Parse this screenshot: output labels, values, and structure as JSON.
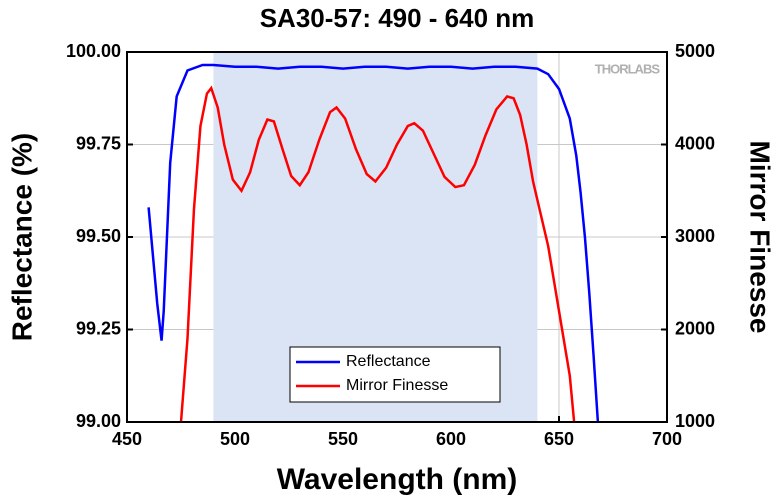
{
  "chart_data": {
    "type": "line",
    "title": "SA30-57: 490 - 640 nm",
    "xlabel": "Wavelength (nm)",
    "ylabel": "Reflectance (%)",
    "y2label": "Mirror Finesse",
    "watermark": "THORLABS",
    "xlim": [
      450,
      700
    ],
    "xticks": [
      450,
      500,
      550,
      600,
      650,
      700
    ],
    "ylim": [
      99,
      100
    ],
    "yticks": [
      {
        "value": 99,
        "label": "99.00"
      },
      {
        "value": 99.25,
        "label": "99.25"
      },
      {
        "value": 99.5,
        "label": "99.50"
      },
      {
        "value": 99.75,
        "label": "99.75"
      },
      {
        "value": 100,
        "label": "100.00"
      }
    ],
    "y2lim": [
      1000,
      5000
    ],
    "y2ticks": [
      1000,
      2000,
      3000,
      4000,
      5000
    ],
    "grid": true,
    "shaded_range": [
      490,
      640
    ],
    "shade_color": "#dbe4f5",
    "legend": "bottom",
    "series": [
      {
        "name": "Reflectance",
        "color": "#0000ff",
        "x": [
          460,
          462,
          464,
          466,
          467,
          470,
          473,
          478,
          485,
          490,
          500,
          510,
          520,
          530,
          540,
          550,
          560,
          570,
          580,
          590,
          600,
          610,
          620,
          630,
          640,
          645,
          650,
          655,
          658,
          660,
          662,
          664,
          666,
          668
        ],
        "values": [
          99.58,
          99.45,
          99.32,
          99.22,
          99.3,
          99.7,
          99.88,
          99.95,
          99.965,
          99.965,
          99.96,
          99.96,
          99.955,
          99.96,
          99.96,
          99.955,
          99.96,
          99.96,
          99.955,
          99.96,
          99.96,
          99.955,
          99.96,
          99.96,
          99.955,
          99.94,
          99.9,
          99.82,
          99.72,
          99.62,
          99.5,
          99.35,
          99.18,
          99.0
        ]
      },
      {
        "name": "Mirror Finesse",
        "color": "#ff0000",
        "axis": "y2",
        "x": [
          475,
          478,
          481,
          484,
          487,
          489,
          492,
          495,
          499,
          503,
          507,
          511,
          515,
          518,
          522,
          526,
          530,
          534,
          539,
          544,
          547,
          551,
          556,
          561,
          565,
          570,
          575,
          580,
          583,
          587,
          592,
          597,
          602,
          606,
          611,
          616,
          621,
          626,
          629,
          632,
          635,
          638,
          641,
          645,
          650,
          655,
          657
        ],
        "values": [
          1000,
          1900,
          3300,
          4200,
          4550,
          4610,
          4400,
          4000,
          3620,
          3500,
          3700,
          4050,
          4270,
          4250,
          3950,
          3660,
          3560,
          3700,
          4050,
          4350,
          4400,
          4280,
          3950,
          3680,
          3600,
          3750,
          4000,
          4200,
          4230,
          4150,
          3900,
          3650,
          3540,
          3560,
          3780,
          4100,
          4380,
          4520,
          4500,
          4320,
          4000,
          3600,
          3300,
          2900,
          2200,
          1500,
          1000
        ]
      }
    ]
  }
}
